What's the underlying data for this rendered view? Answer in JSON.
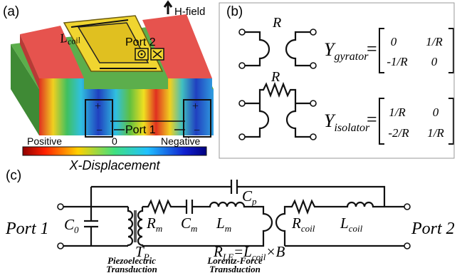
{
  "panel_a": {
    "label": "(a)",
    "field_label": "H-field",
    "coil": {
      "main": "L",
      "sub": "coil"
    },
    "port2": "Port 2",
    "port1": "Port 1",
    "plus": "+",
    "minus": "−",
    "colorbar": {
      "positive": "Positive",
      "zero": "0",
      "negative": "Negative",
      "title": "X-Displacement"
    }
  },
  "panel_b": {
    "label": "(b)",
    "gyrator": {
      "r": "R",
      "y": "Y",
      "sub": "gyrator",
      "eq": "=",
      "matrix": [
        [
          "0",
          "1/R"
        ],
        [
          "-1/R",
          "0"
        ]
      ]
    },
    "isolator": {
      "r": "R",
      "y": "Y",
      "sub": "isolator",
      "eq": "=",
      "matrix": [
        [
          "1/R",
          "0"
        ],
        [
          "-2/R",
          "1/R"
        ]
      ]
    }
  },
  "panel_c": {
    "label": "(c)",
    "port1": "Port 1",
    "port2": "Port 2",
    "c0": {
      "main": "C",
      "sub": "0"
    },
    "tp": {
      "main": "T",
      "sub": "P"
    },
    "rm": {
      "main": "R",
      "sub": "m"
    },
    "cm": {
      "main": "C",
      "sub": "m"
    },
    "lm": {
      "main": "L",
      "sub": "m"
    },
    "cp": {
      "main": "C",
      "sub": "p"
    },
    "rcoil": {
      "main": "R",
      "sub": "coil"
    },
    "lcoil": {
      "main": "L",
      "sub": "coil"
    },
    "rlf": {
      "r": "R",
      "r_sub": "LF",
      "eq": "=L",
      "l_sub": "coil",
      "tail": "×B"
    },
    "piezo": [
      "Piezoelectric",
      "Transduction"
    ],
    "lorentz": [
      "Lorentz-Force",
      "Transduction"
    ]
  }
}
